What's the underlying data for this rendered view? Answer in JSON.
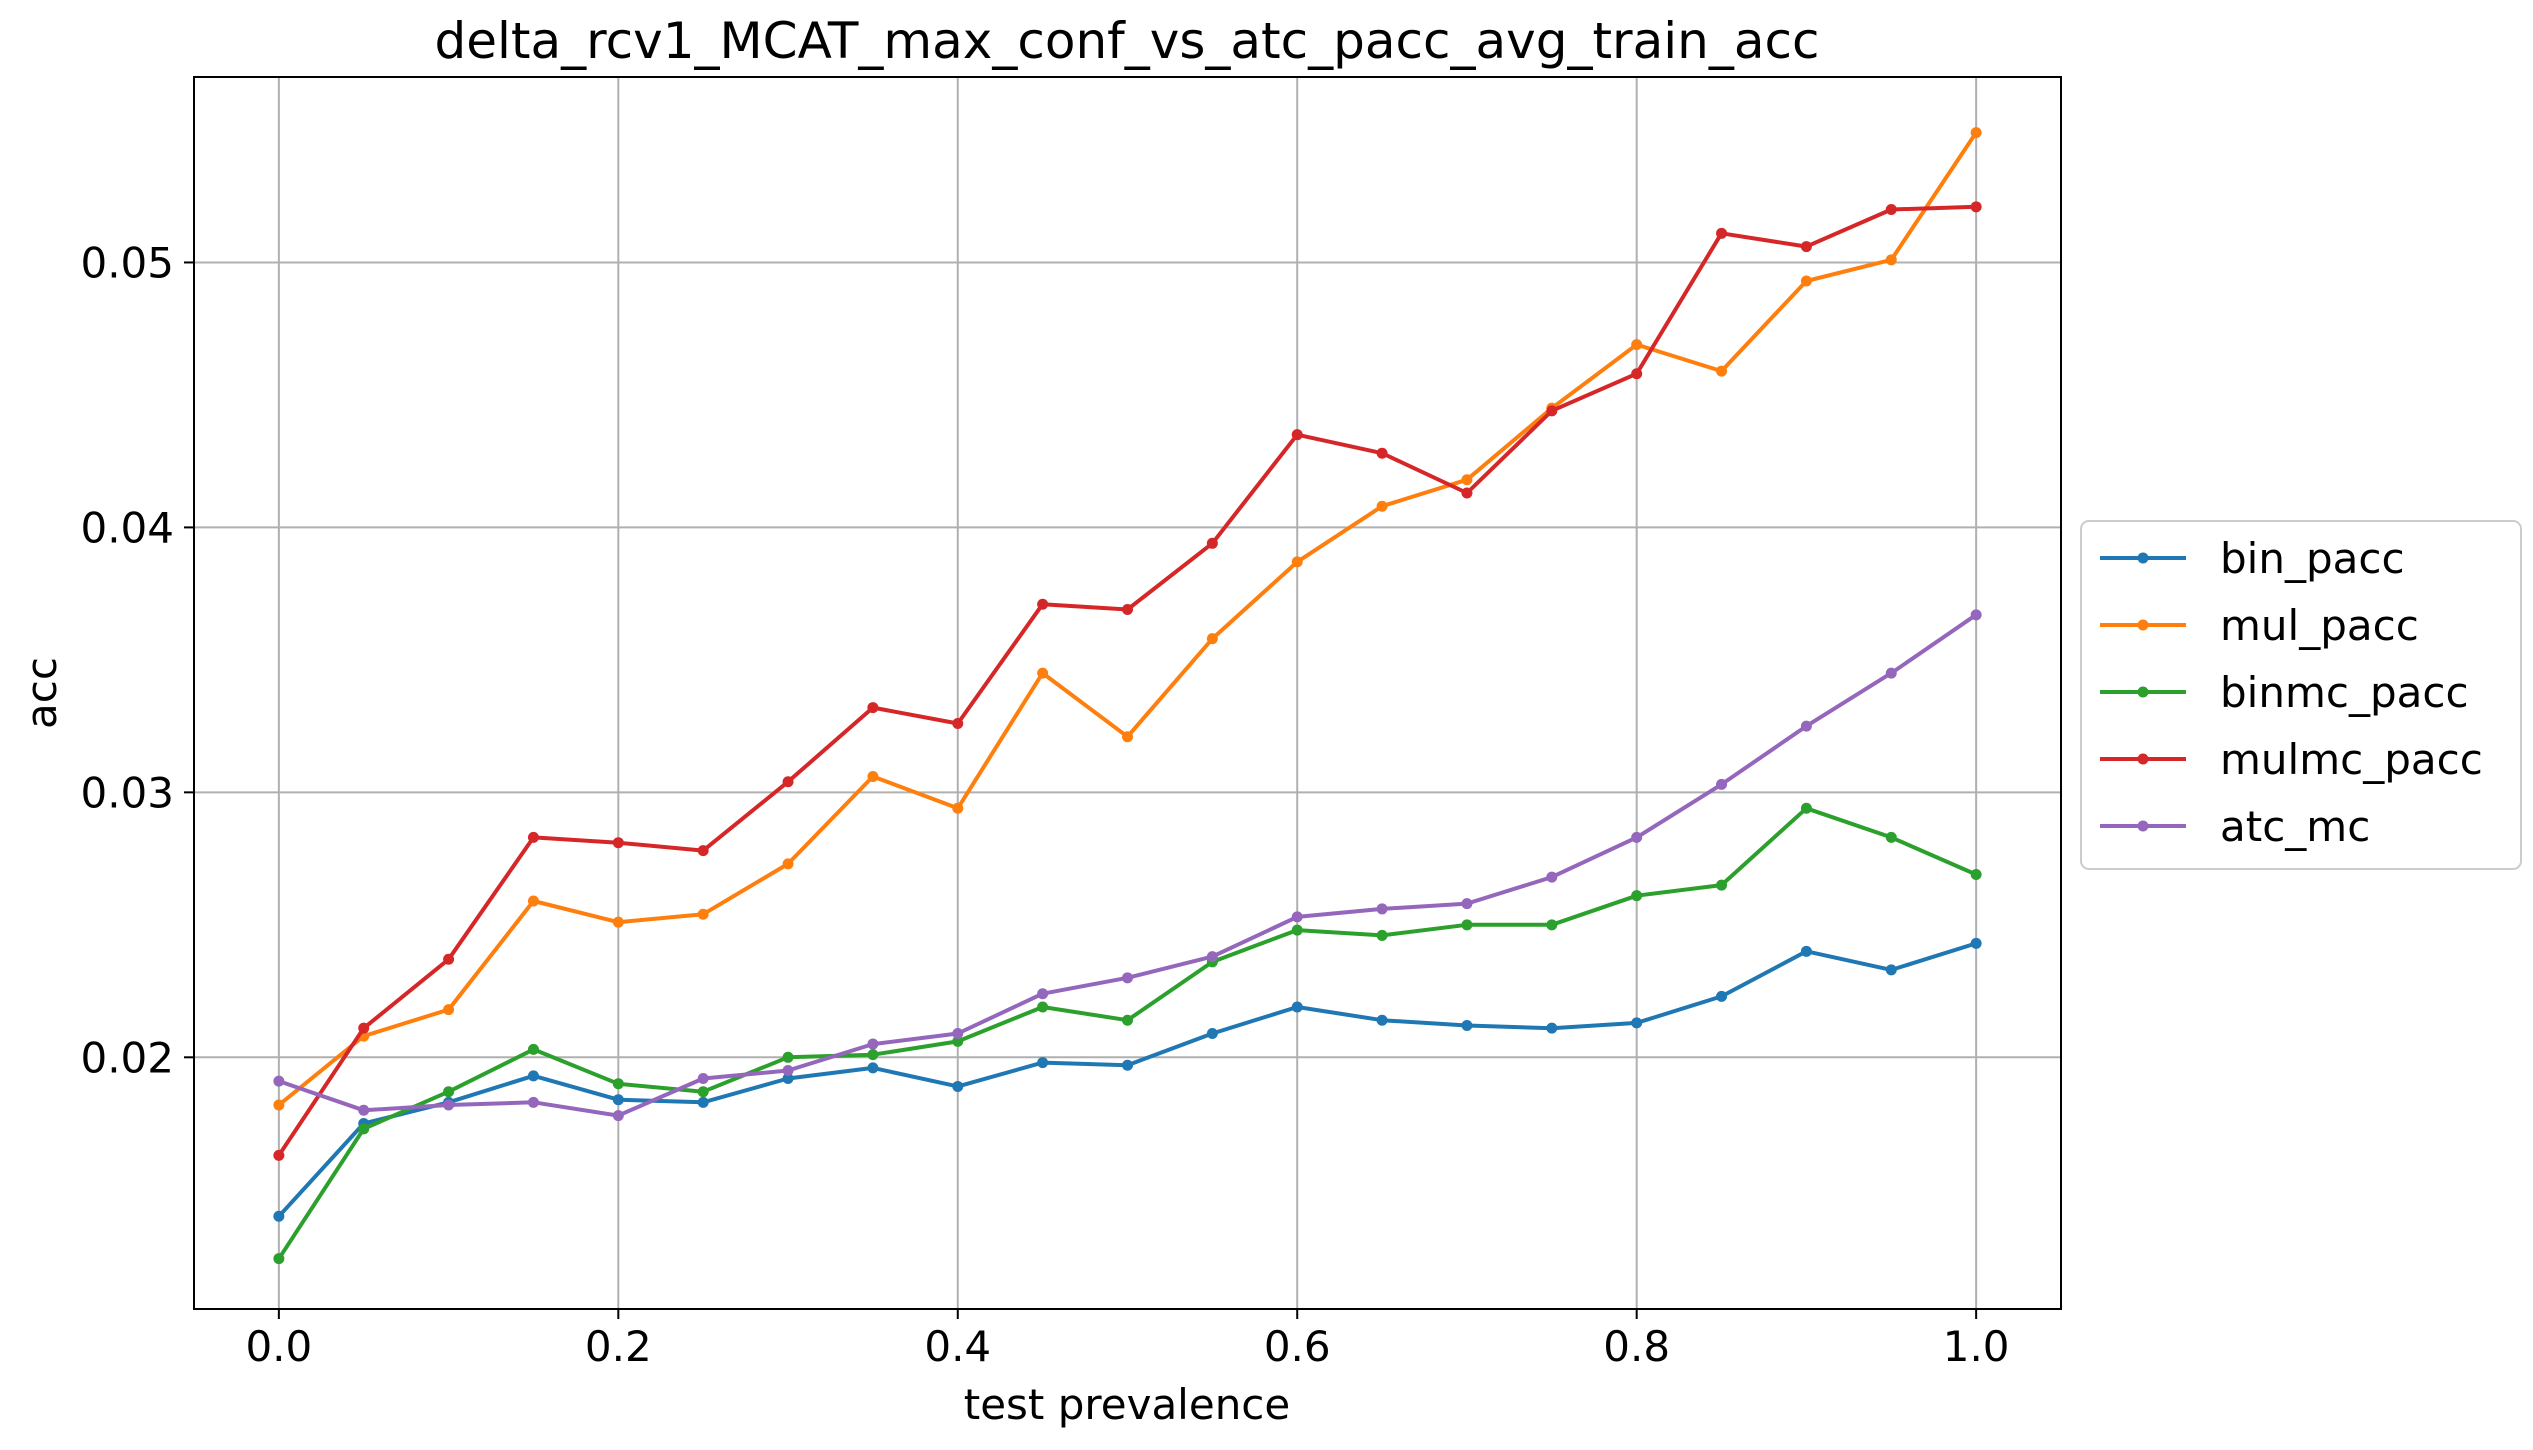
{
  "chart_data": {
    "type": "line",
    "title": "delta_rcv1_MCAT_max_conf_vs_atc_pacc_avg_train_acc",
    "xlabel": "test prevalence",
    "ylabel": "acc",
    "xlim": [
      -0.05,
      1.05
    ],
    "ylim": [
      0.0105,
      0.057
    ],
    "xticks": [
      0.0,
      0.2,
      0.4,
      0.6,
      0.8,
      1.0
    ],
    "xtick_labels": [
      "0.0",
      "0.2",
      "0.4",
      "0.6",
      "0.8",
      "1.0"
    ],
    "yticks": [
      0.02,
      0.03,
      0.04,
      0.05
    ],
    "ytick_labels": [
      "0.02",
      "0.03",
      "0.04",
      "0.05"
    ],
    "grid": true,
    "legend_position": "right, outside plot",
    "x": [
      0.0,
      0.05,
      0.1,
      0.15,
      0.2,
      0.25,
      0.3,
      0.35,
      0.4,
      0.45,
      0.5,
      0.55,
      0.6,
      0.65,
      0.7,
      0.75,
      0.8,
      0.85,
      0.9,
      0.95,
      1.0
    ],
    "series": [
      {
        "name": "bin_pacc",
        "color": "#1f77b4",
        "values": [
          0.014,
          0.0175,
          0.0183,
          0.0193,
          0.0184,
          0.0183,
          0.0192,
          0.0196,
          0.0189,
          0.0198,
          0.0197,
          0.0209,
          0.0219,
          0.0214,
          0.0212,
          0.0211,
          0.0213,
          0.0223,
          0.024,
          0.0233,
          0.0243
        ]
      },
      {
        "name": "mul_pacc",
        "color": "#ff7f0e",
        "values": [
          0.0182,
          0.0208,
          0.0218,
          0.0259,
          0.0251,
          0.0254,
          0.0273,
          0.0306,
          0.0294,
          0.0345,
          0.0321,
          0.0358,
          0.0387,
          0.0408,
          0.0418,
          0.0445,
          0.0469,
          0.0459,
          0.0493,
          0.0501,
          0.0549
        ]
      },
      {
        "name": "binmc_pacc",
        "color": "#2ca02c",
        "values": [
          0.0124,
          0.0173,
          0.0187,
          0.0203,
          0.019,
          0.0187,
          0.02,
          0.0201,
          0.0206,
          0.0219,
          0.0214,
          0.0236,
          0.0248,
          0.0246,
          0.025,
          0.025,
          0.0261,
          0.0265,
          0.0294,
          0.0283,
          0.0269
        ]
      },
      {
        "name": "mulmc_pacc",
        "color": "#d62728",
        "values": [
          0.0163,
          0.0211,
          0.0237,
          0.0283,
          0.0281,
          0.0278,
          0.0304,
          0.0332,
          0.0326,
          0.0371,
          0.0369,
          0.0394,
          0.0435,
          0.0428,
          0.0413,
          0.0444,
          0.0458,
          0.0511,
          0.0506,
          0.052,
          0.0521
        ]
      },
      {
        "name": "atc_mc",
        "color": "#9467bd",
        "values": [
          0.0191,
          0.018,
          0.0182,
          0.0183,
          0.0178,
          0.0192,
          0.0195,
          0.0205,
          0.0209,
          0.0224,
          0.023,
          0.0238,
          0.0253,
          0.0256,
          0.0258,
          0.0268,
          0.0283,
          0.0303,
          0.0325,
          0.0345,
          0.0367
        ]
      }
    ]
  }
}
